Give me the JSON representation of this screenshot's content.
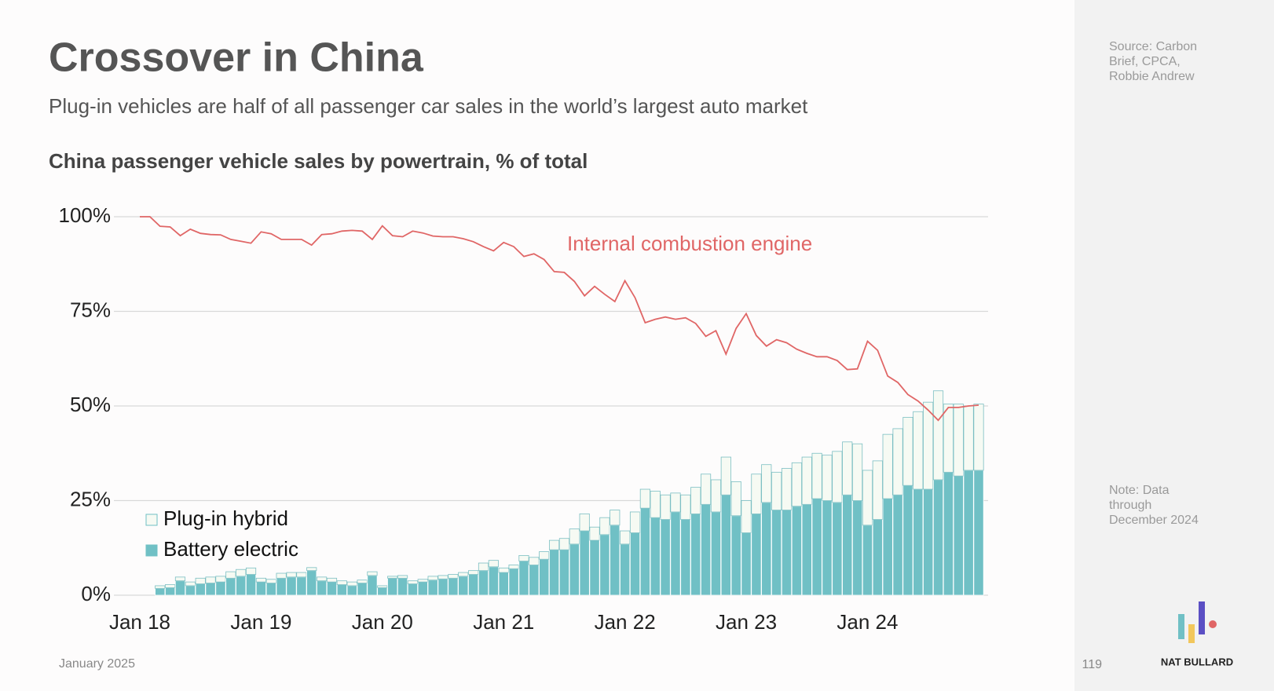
{
  "header": {
    "title": "Crossover in China",
    "subtitle": "Plug-in vehicles are half of all passenger car sales in the world’s largest auto market"
  },
  "sidebar": {
    "source": "Source: Carbon Brief, CPCA, Robbie Andrew",
    "note": "Note: Data through December 2024"
  },
  "footer": {
    "date": "January 2025",
    "page": "119",
    "brand": "NAT BULLARD"
  },
  "chart_data": {
    "type": "bar",
    "stacked": true,
    "title": "China passenger vehicle sales by powertrain, % of total",
    "categories": [
      "Jan 18",
      null,
      null,
      null,
      null,
      null,
      null,
      null,
      null,
      null,
      null,
      null,
      "Jan 19",
      null,
      null,
      null,
      null,
      null,
      null,
      null,
      null,
      null,
      null,
      null,
      "Jan 20",
      null,
      null,
      null,
      null,
      null,
      null,
      null,
      null,
      null,
      null,
      null,
      "Jan 21",
      null,
      null,
      null,
      null,
      null,
      null,
      null,
      null,
      null,
      null,
      null,
      "Jan 22",
      null,
      null,
      null,
      null,
      null,
      null,
      null,
      null,
      null,
      null,
      null,
      "Jan 23",
      null,
      null,
      null,
      null,
      null,
      null,
      null,
      null,
      null,
      null,
      null,
      "Jan 24",
      null,
      null,
      null,
      null,
      null,
      null,
      null,
      null,
      null,
      null,
      null
    ],
    "series": [
      {
        "name": "Battery electric",
        "type": "bar",
        "color": "#70c0c5",
        "values": [
          null,
          null,
          1.8,
          2,
          3.8,
          2.5,
          3,
          3.2,
          3.5,
          4.5,
          5,
          5.5,
          3.5,
          3.2,
          4.5,
          4.8,
          4.8,
          6.5,
          3.8,
          3.5,
          2.8,
          2.5,
          3.2,
          5.2,
          2,
          4.5,
          4.5,
          3,
          3.5,
          4,
          4.3,
          4.5,
          5,
          5.5,
          6.5,
          7.5,
          6,
          7,
          9,
          8,
          9.5,
          12,
          12,
          13.5,
          17,
          14.5,
          16,
          18.5,
          13.5,
          16.5,
          23,
          20.5,
          20,
          22,
          20,
          21.5,
          24,
          22,
          26.5,
          21,
          16.5,
          21.5,
          24.5,
          22.5,
          22.5,
          23.5,
          24,
          25.5,
          25,
          24.5,
          26.5,
          25,
          18.5,
          20,
          25.5,
          26.5,
          29,
          28,
          28,
          30.5,
          32.5,
          31.5,
          33,
          33
        ]
      },
      {
        "name": "Plug-in hybrid",
        "type": "bar",
        "color": "#f6faf3",
        "values": [
          null,
          null,
          0.7,
          0.8,
          1,
          1,
          1.5,
          1.6,
          1.5,
          1.7,
          1.8,
          1.7,
          1,
          1,
          1.3,
          1.2,
          1.2,
          0.8,
          1,
          1,
          1,
          1,
          0.8,
          1,
          0.5,
          0.5,
          0.7,
          0.8,
          0.7,
          1,
          0.9,
          1,
          1,
          1,
          2,
          1.7,
          1.2,
          1,
          1.5,
          2,
          2,
          2.5,
          3,
          4,
          4.5,
          3.5,
          4.5,
          4,
          3.5,
          5.5,
          5,
          7,
          6.5,
          5,
          6.5,
          7,
          8,
          8.5,
          10,
          9,
          8.5,
          10.5,
          10,
          10,
          11,
          11.5,
          12.5,
          12,
          12,
          13.5,
          14,
          15,
          14.5,
          15.5,
          17,
          17.5,
          18,
          20.5,
          23,
          23.5,
          18,
          19,
          17,
          17.5
        ]
      },
      {
        "name": "Internal combustion engine",
        "type": "line",
        "color": "#e06666",
        "values": [
          100,
          100,
          97.5,
          97.3,
          95,
          96.7,
          95.6,
          95.3,
          95.2,
          94,
          93.5,
          93,
          96,
          95.5,
          94,
          94,
          94,
          92.5,
          95.3,
          95.5,
          96.2,
          96.4,
          96.2,
          94,
          97.6,
          95,
          94.7,
          96.2,
          95.7,
          94.9,
          94.7,
          94.7,
          94.2,
          93.4,
          92.1,
          91,
          93.2,
          92.1,
          89.5,
          90.2,
          88.7,
          85.5,
          85.3,
          82.9,
          79.1,
          81.6,
          79.5,
          77.6,
          83.1,
          78.6,
          72,
          72.9,
          73.5,
          72.9,
          73.3,
          71.8,
          68.4,
          69.9,
          63.7,
          70.5,
          74.4,
          68.6,
          65.8,
          67.5,
          66.7,
          65,
          63.9,
          63,
          63,
          62,
          59.6,
          59.8,
          67.1,
          64.7,
          57.9,
          56.2,
          53,
          51.3,
          48.9,
          46.2,
          49.6,
          49.6,
          50,
          50.2
        ]
      }
    ],
    "ylim": [
      0,
      100
    ],
    "yticks": [
      {
        "value": 0,
        "label": "0%"
      },
      {
        "value": 25,
        "label": "25%"
      },
      {
        "value": 50,
        "label": "50%"
      },
      {
        "value": 75,
        "label": "75%"
      },
      {
        "value": 100,
        "label": "100%"
      }
    ],
    "grid": true
  }
}
